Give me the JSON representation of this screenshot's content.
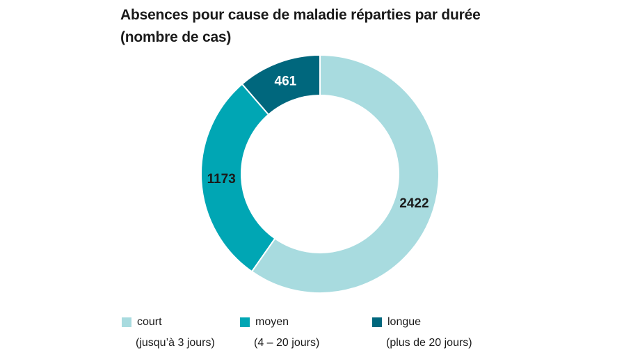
{
  "chart_data": {
    "type": "pie",
    "variant": "donut",
    "title": "Absences pour cause de maladie réparties par durée",
    "subtitle": "(nombre de cas)",
    "categories": [
      "court",
      "moyen",
      "longue"
    ],
    "category_descriptions": [
      "(jusqu’à 3 jours)",
      "(4 – 20 jours)",
      "(plus de 20 jours)"
    ],
    "values": [
      2422,
      1173,
      461
    ],
    "data_labels": [
      "2422",
      "1173",
      "461"
    ],
    "colors": [
      "#a8dbdf",
      "#00a6b4",
      "#00677d"
    ],
    "label_colors": [
      "#1a1a1a",
      "#1a1a1a",
      "#ffffff"
    ],
    "legend_position": "bottom"
  }
}
